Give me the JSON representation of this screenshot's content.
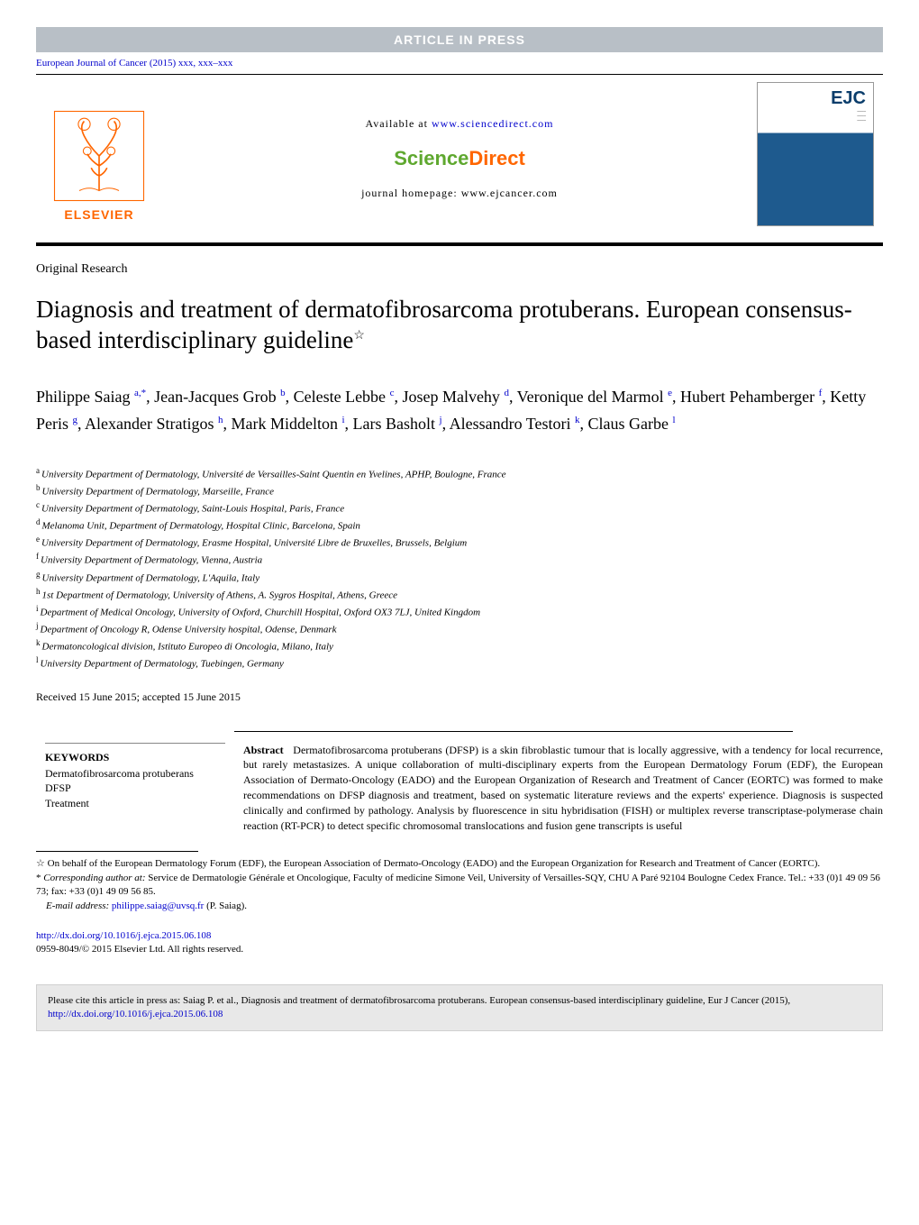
{
  "banner": "ARTICLE IN PRESS",
  "journal_ref": "European Journal of Cancer (2015) xxx, xxx–xxx",
  "publisher_name": "ELSEVIER",
  "header": {
    "available_prefix": "Available at ",
    "available_link": "www.sciencedirect.com",
    "sd_part1": "Science",
    "sd_part2": "Direct",
    "homepage": "journal homepage: www.ejcancer.com",
    "ejc_label": "EJC"
  },
  "section_label": "Original Research",
  "title": "Diagnosis and treatment of dermatofibrosarcoma protuberans. European consensus-based interdisciplinary guideline",
  "title_star": "☆",
  "authors": [
    {
      "name": "Philippe Saiag",
      "sup": "a,*"
    },
    {
      "name": "Jean-Jacques Grob",
      "sup": "b"
    },
    {
      "name": "Celeste Lebbe",
      "sup": "c"
    },
    {
      "name": "Josep Malvehy",
      "sup": "d"
    },
    {
      "name": "Veronique del Marmol",
      "sup": "e"
    },
    {
      "name": "Hubert Pehamberger",
      "sup": "f"
    },
    {
      "name": "Ketty Peris",
      "sup": "g"
    },
    {
      "name": "Alexander Stratigos",
      "sup": "h"
    },
    {
      "name": "Mark Middelton",
      "sup": "i"
    },
    {
      "name": "Lars Basholt",
      "sup": "j"
    },
    {
      "name": "Alessandro Testori",
      "sup": "k"
    },
    {
      "name": "Claus Garbe",
      "sup": "l"
    }
  ],
  "affiliations": [
    {
      "s": "a",
      "t": "University Department of Dermatology, Université de Versailles-Saint Quentin en Yvelines, APHP, Boulogne, France"
    },
    {
      "s": "b",
      "t": "University Department of Dermatology, Marseille, France"
    },
    {
      "s": "c",
      "t": "University Department of Dermatology, Saint-Louis Hospital, Paris, France"
    },
    {
      "s": "d",
      "t": "Melanoma Unit, Department of Dermatology, Hospital Clinic, Barcelona, Spain"
    },
    {
      "s": "e",
      "t": "University Department of Dermatology, Erasme Hospital, Université Libre de Bruxelles, Brussels, Belgium"
    },
    {
      "s": "f",
      "t": "University Department of Dermatology, Vienna, Austria"
    },
    {
      "s": "g",
      "t": "University Department of Dermatology, L'Aquila, Italy"
    },
    {
      "s": "h",
      "t": "1st Department of Dermatology, University of Athens, A. Sygros Hospital, Athens, Greece"
    },
    {
      "s": "i",
      "t": "Department of Medical Oncology, University of Oxford, Churchill Hospital, Oxford OX3 7LJ, United Kingdom"
    },
    {
      "s": "j",
      "t": "Department of Oncology R, Odense University hospital, Odense, Denmark"
    },
    {
      "s": "k",
      "t": "Dermatoncological division, Istituto Europeo di Oncologia, Milano, Italy"
    },
    {
      "s": "l",
      "t": "University Department of Dermatology, Tuebingen, Germany"
    }
  ],
  "received": "Received 15 June 2015; accepted 15 June 2015",
  "keywords": {
    "head": "KEYWORDS",
    "items": [
      "Dermatofibrosarcoma protuberans",
      "DFSP",
      "Treatment"
    ]
  },
  "abstract": {
    "head": "Abstract",
    "text": "Dermatofibrosarcoma protuberans (DFSP) is a skin fibroblastic tumour that is locally aggressive, with a tendency for local recurrence, but rarely metastasizes. A unique collaboration of multi-disciplinary experts from the European Dermatology Forum (EDF), the European Association of Dermato-Oncology (EADO) and the European Organization of Research and Treatment of Cancer (EORTC) was formed to make recommendations on DFSP diagnosis and treatment, based on systematic literature reviews and the experts' experience. Diagnosis is suspected clinically and confirmed by pathology. Analysis by fluorescence in situ hybridisation (FISH) or multiplex reverse transcriptase-polymerase chain reaction (RT-PCR) to detect specific chromosomal translocations and fusion gene transcripts is useful"
  },
  "footnotes": {
    "star_sym": "☆",
    "star": "On behalf of the European Dermatology Forum (EDF), the European Association of Dermato-Oncology (EADO) and the European Organization for Research and Treatment of Cancer (EORTC).",
    "corr_sym": "*",
    "corr_label": "Corresponding author at:",
    "corr": "Service de Dermatologie Générale et Oncologique, Faculty of medicine Simone Veil, University of Versailles-SQY, CHU A Paré 92104 Boulogne Cedex France. Tel.: +33 (0)1 49 09 56 73; fax: +33 (0)1 49 09 56 85.",
    "email_label": "E-mail address:",
    "email": "philippe.saiag@uvsq.fr",
    "email_suffix": "(P. Saiag)."
  },
  "doi": {
    "link": "http://dx.doi.org/10.1016/j.ejca.2015.06.108",
    "copyright": "0959-8049/© 2015 Elsevier Ltd. All rights reserved."
  },
  "citebox": {
    "prefix": "Please cite this article in press as: Saiag P. et al., Diagnosis and treatment of dermatofibrosarcoma protuberans. European consensus-based interdisciplinary guideline, Eur J Cancer (2015), ",
    "link": "http://dx.doi.org/10.1016/j.ejca.2015.06.108"
  },
  "colors": {
    "banner_bg": "#b8bfc6",
    "link": "#0000cc",
    "elsevier": "#ff6600",
    "sd_green": "#5fa82f",
    "sd_orange": "#ff6600",
    "citebox_bg": "#e8e8e8"
  }
}
